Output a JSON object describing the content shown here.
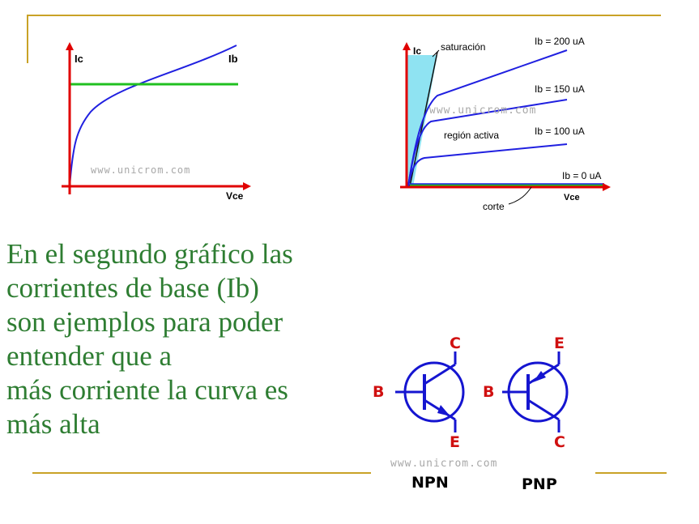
{
  "chart1": {
    "y_label": "Ic",
    "x_label": "Vce",
    "curve_label": "Ib",
    "watermark": "www.unicrom.com"
  },
  "chart2": {
    "y_label": "Ic",
    "x_label": "Vce",
    "region_saturation": "saturación",
    "region_active": "región activa",
    "region_cutoff": "corte",
    "watermark": "www.unicrom.com",
    "curves": [
      {
        "label": "Ib = 200 uA"
      },
      {
        "label": "Ib = 150 uA"
      },
      {
        "label": "Ib = 100 uA"
      },
      {
        "label": "Ib = 0 uA"
      }
    ]
  },
  "body_text": [
    "En el segundo gráfico las",
    "corrientes de base (Ib)",
    "son ejemplos para poder",
    "entender que a",
    "más corriente la curva es",
    "más alta"
  ],
  "transistors": {
    "npn": {
      "name": "NPN",
      "base": "B",
      "collector": "C",
      "emitter": "E"
    },
    "pnp": {
      "name": "PNP",
      "base": "B",
      "collector": "C",
      "emitter": "E"
    },
    "watermark": "www.unicrom.com"
  },
  "colors": {
    "accent_rule": "#c9a227",
    "text_green": "#2e7d32",
    "axis_red": "#e00000",
    "curve_blue": "#2020e0",
    "line_green": "#20c020",
    "saturation_cyan": "#8fe3f2",
    "symbol_blue": "#1515d0",
    "terminal_red": "#d01010"
  }
}
